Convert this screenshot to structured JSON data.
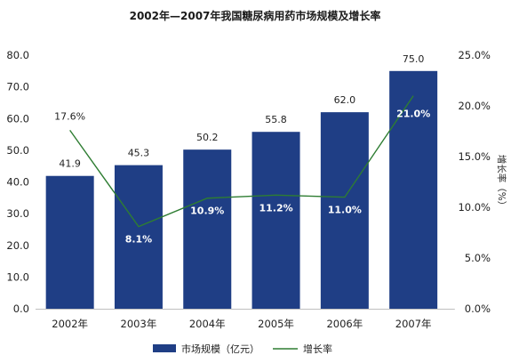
{
  "chart_data": {
    "type": "bar+line",
    "title": "2002年—2007年我国糖尿病用药市场规模及增长率",
    "categories": [
      "2002年",
      "2003年",
      "2004年",
      "2005年",
      "2006年",
      "2007年"
    ],
    "series": [
      {
        "name": "市场规模（亿元）",
        "type": "bar",
        "axis": "left",
        "values": [
          41.9,
          45.3,
          50.2,
          55.8,
          62.0,
          75.0
        ],
        "labels": [
          "41.9",
          "45.3",
          "50.2",
          "55.8",
          "62.0",
          "75.0"
        ],
        "color": "#1f3e85"
      },
      {
        "name": "增长率",
        "type": "line",
        "axis": "right",
        "values": [
          17.6,
          8.1,
          10.9,
          11.2,
          11.0,
          21.0
        ],
        "labels": [
          "17.6%",
          "8.1%",
          "10.9%",
          "11.2%",
          "11.0%",
          "21.0%"
        ],
        "color": "#2e7d32"
      }
    ],
    "left_axis": {
      "range": [
        0,
        80
      ],
      "ticks": [
        0,
        10,
        20,
        30,
        40,
        50,
        60,
        70,
        80
      ],
      "tick_labels": [
        "0.0",
        "10.0",
        "20.0",
        "30.0",
        "40.0",
        "50.0",
        "60.0",
        "70.0",
        "80.0"
      ]
    },
    "right_axis": {
      "label": "增长率（%）",
      "range": [
        0,
        25
      ],
      "ticks": [
        0,
        5,
        10,
        15,
        20,
        25
      ],
      "tick_labels": [
        "0.0%",
        "5.0%",
        "10.0%",
        "15.0%",
        "20.0%",
        "25.0%"
      ]
    },
    "grid": false,
    "legend_position": "bottom"
  }
}
